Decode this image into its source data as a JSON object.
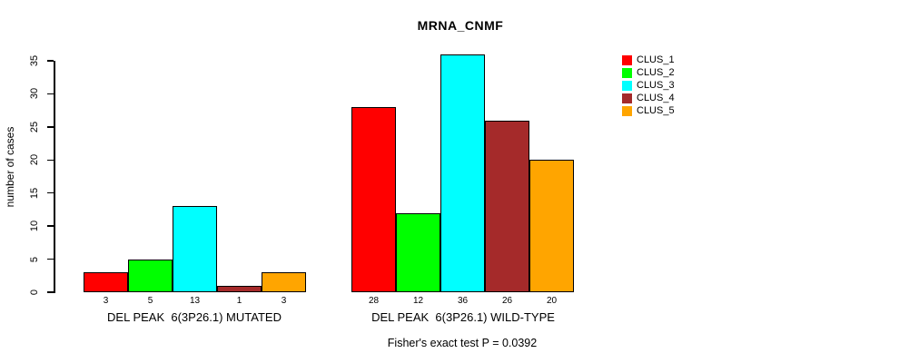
{
  "chart_data": {
    "type": "bar",
    "title": "MRNA_CNMF",
    "ylabel": "number of cases",
    "xlabel": "",
    "ylim": [
      0,
      36
    ],
    "y_ticks": [
      0,
      5,
      10,
      15,
      20,
      25,
      30,
      35
    ],
    "grid": false,
    "legend_position": "top-right",
    "bar_value_labels": true,
    "categories": [
      "DEL PEAK  6(3P26.1) MUTATED",
      "DEL PEAK  6(3P26.1) WILD-TYPE"
    ],
    "series": [
      {
        "name": "CLUS_1",
        "color": "#FF0000",
        "values": [
          3,
          28
        ]
      },
      {
        "name": "CLUS_2",
        "color": "#00FF00",
        "values": [
          5,
          12
        ]
      },
      {
        "name": "CLUS_3",
        "color": "#00FFFF",
        "values": [
          13,
          36
        ]
      },
      {
        "name": "CLUS_4",
        "color": "#A52A2A",
        "values": [
          1,
          26
        ]
      },
      {
        "name": "CLUS_5",
        "color": "#FFA500",
        "values": [
          3,
          20
        ]
      }
    ],
    "annotation": "Fisher's exact test P = 0.0392"
  }
}
